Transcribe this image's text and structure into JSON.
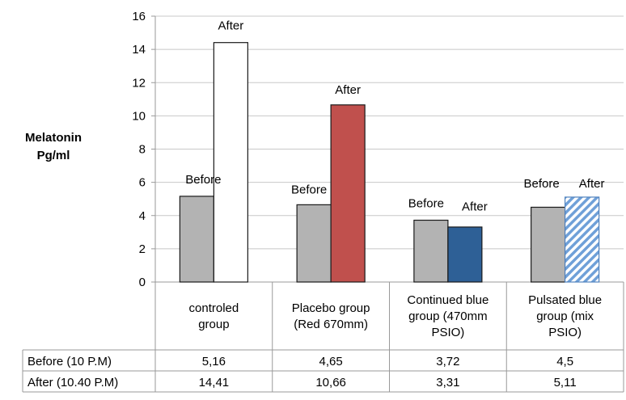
{
  "chart_data": {
    "type": "bar",
    "ylabel_lines": [
      "Melatonin",
      "Pg/ml"
    ],
    "ylim": [
      0,
      16
    ],
    "yticks": [
      0,
      2,
      4,
      6,
      8,
      10,
      12,
      14,
      16
    ],
    "grid": true,
    "categories": [
      [
        "controled",
        "group"
      ],
      [
        "Placebo group",
        "(Red 670mm)"
      ],
      [
        "Continued blue",
        "group (470mm",
        "PSIO)"
      ],
      [
        "Pulsated blue",
        "group (mix",
        "PSIO)"
      ]
    ],
    "series": [
      {
        "name": "Before (10 P.M)",
        "bar_label": "Before",
        "values": [
          5.16,
          4.65,
          3.72,
          4.5
        ],
        "display": [
          "5,16",
          "4,65",
          "3,72",
          "4,5"
        ],
        "colors": [
          "#b3b3b3",
          "#b3b3b3",
          "#b3b3b3",
          "#b3b3b3"
        ]
      },
      {
        "name": "After (10.40 P.M)",
        "bar_label": "After",
        "values": [
          14.41,
          10.66,
          3.31,
          5.11
        ],
        "display": [
          "14,41",
          "10,66",
          "3,31",
          "5,11"
        ],
        "colors": [
          "#ffffff",
          "#c0504d",
          "#2e6096",
          "hatch"
        ]
      }
    ]
  }
}
